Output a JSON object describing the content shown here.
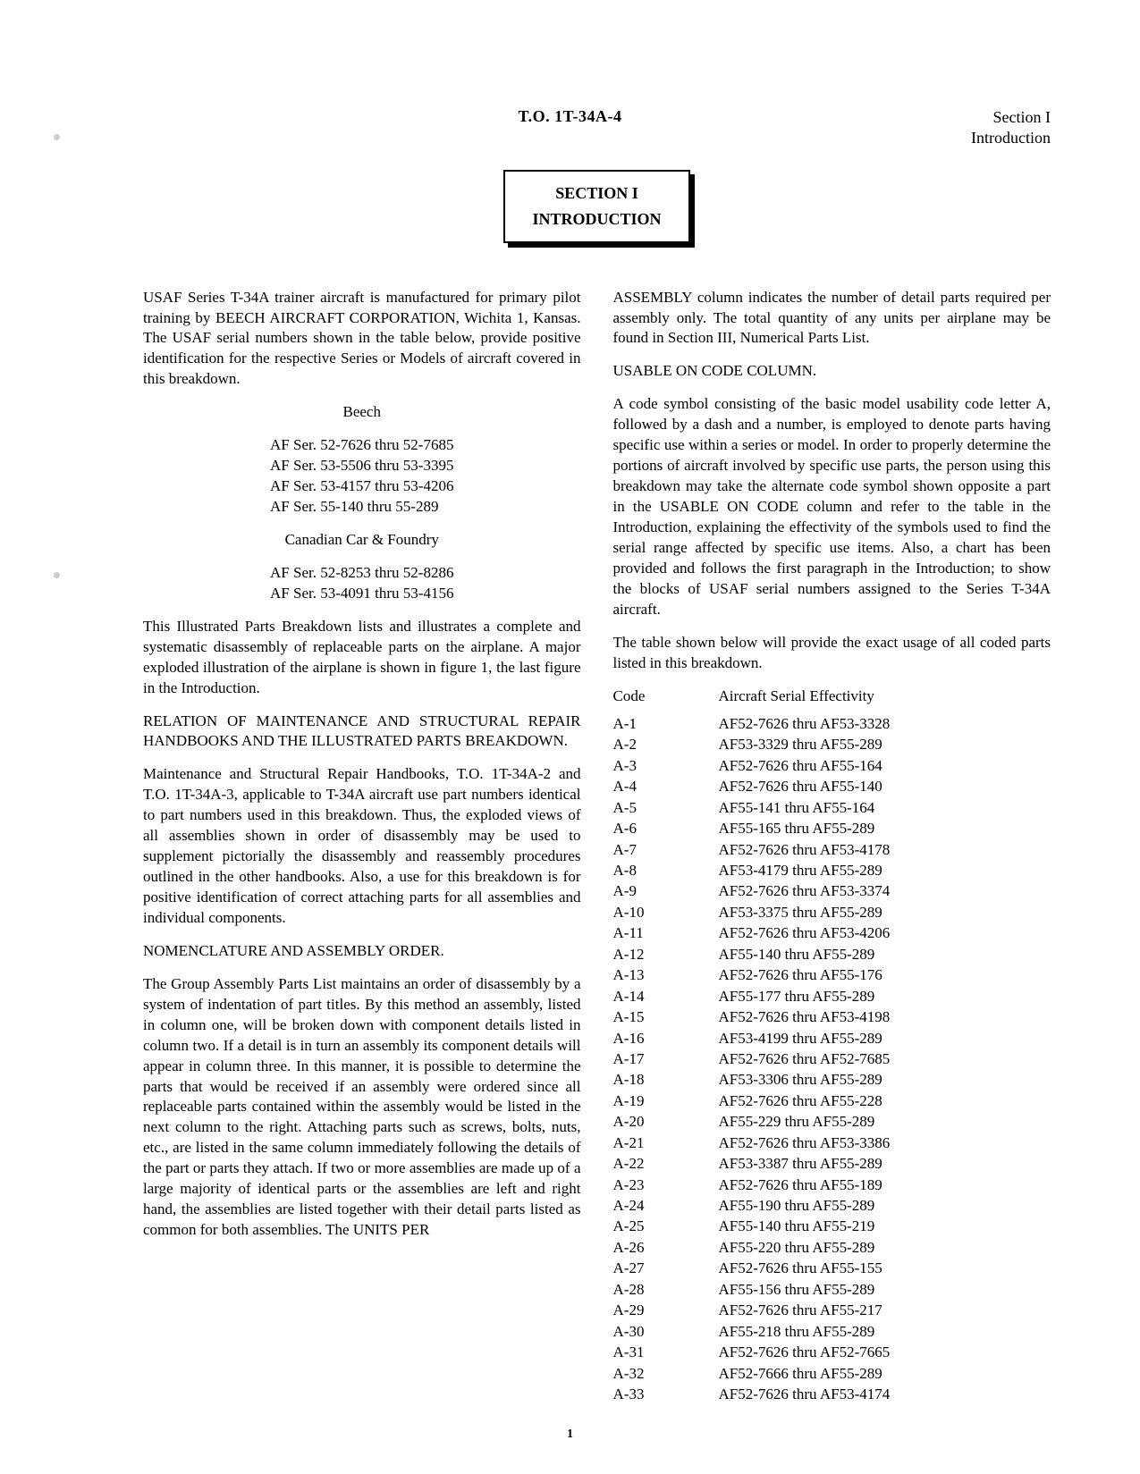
{
  "header": {
    "to_number": "T.O. 1T-34A-4",
    "section_label": "Section I",
    "section_sub": "Introduction"
  },
  "section_box": {
    "title": "SECTION I",
    "subtitle": "INTRODUCTION"
  },
  "left": {
    "p1": "USAF Series T-34A trainer aircraft is manufactured for primary pilot training by BEECH AIRCRAFT CORPORATION, Wichita 1, Kansas. The USAF serial numbers shown in the table below, provide positive identification for the respective Series or Models of aircraft covered in this breakdown.",
    "maker1": "Beech",
    "serials1": [
      "AF Ser. 52-7626 thru 52-7685",
      "AF Ser. 53-5506 thru 53-3395",
      "AF Ser. 53-4157 thru 53-4206",
      "AF Ser. 55-140 thru 55-289"
    ],
    "maker2": "Canadian Car & Foundry",
    "serials2": [
      "AF Ser. 52-8253 thru 52-8286",
      "AF Ser. 53-4091 thru 53-4156"
    ],
    "p2": "This Illustrated Parts Breakdown lists and illustrates a complete and systematic disassembly of replaceable parts on the airplane. A major exploded illustration of the airplane is shown in figure 1, the last figure in the Introduction.",
    "sub1": "RELATION OF MAINTENANCE AND STRUCTURAL REPAIR HANDBOOKS AND THE ILLUSTRATED PARTS BREAKDOWN.",
    "p3": "Maintenance and Structural Repair Handbooks, T.O. 1T-34A-2 and T.O. 1T-34A-3, applicable to T-34A aircraft use part numbers identical to part numbers used in this breakdown. Thus, the exploded views of all assemblies shown in order of disassembly may be used to supplement pictorially the disassembly and reassembly procedures outlined in the other handbooks. Also, a use for this breakdown is for positive identification of correct attaching parts for all assemblies and individual components.",
    "sub2": "NOMENCLATURE AND ASSEMBLY ORDER.",
    "p4": "The Group Assembly Parts List maintains an order of disassembly by a system of indentation of part titles. By this method an assembly, listed in column one, will be broken down with component details listed in column two. If a detail is in turn an assembly its component details will appear in column three. In this manner, it is possible to determine the parts that would be received if an assembly were ordered since all replaceable parts contained within the assembly would be listed in the next column to the right. Attaching parts such as screws, bolts, nuts, etc., are listed in the same column immediately following the details of the part or parts they attach. If two or more assemblies are made up of a large majority of identical parts or the assemblies are left and right hand, the assemblies are listed together with their detail parts listed as common for both assemblies. The UNITS PER"
  },
  "right": {
    "p1": "ASSEMBLY column indicates the number of detail parts required per assembly only. The total quantity of any units per airplane may be found in Section III, Numerical Parts List.",
    "sub1": "USABLE ON CODE COLUMN.",
    "p2": "A code symbol consisting of the basic model usability code letter A, followed by a dash and a number, is employed to denote parts having specific use within a series or model. In order to properly determine the portions of aircraft involved by specific use parts, the person using this breakdown may take the alternate code symbol shown opposite a part in the USABLE ON CODE column and refer to the table in the Introduction, explaining the effectivity of the symbols used to find the serial range affected by specific use items. Also, a chart has been provided and follows the first paragraph in the Introduction; to show the blocks of USAF serial numbers assigned to the Series T-34A aircraft.",
    "p3": "The table shown below will provide the exact usage of all coded parts listed in this breakdown.",
    "table": {
      "head_code": "Code",
      "head_eff": "Aircraft Serial Effectivity",
      "rows": [
        {
          "code": "A-1",
          "eff": "AF52-7626 thru AF53-3328"
        },
        {
          "code": "A-2",
          "eff": "AF53-3329 thru AF55-289"
        },
        {
          "code": "A-3",
          "eff": "AF52-7626 thru AF55-164"
        },
        {
          "code": "A-4",
          "eff": "AF52-7626 thru AF55-140"
        },
        {
          "code": "A-5",
          "eff": "AF55-141 thru AF55-164"
        },
        {
          "code": "A-6",
          "eff": "AF55-165 thru AF55-289"
        },
        {
          "code": "A-7",
          "eff": "AF52-7626 thru AF53-4178"
        },
        {
          "code": "A-8",
          "eff": "AF53-4179 thru AF55-289"
        },
        {
          "code": "A-9",
          "eff": "AF52-7626 thru AF53-3374"
        },
        {
          "code": "A-10",
          "eff": "AF53-3375 thru AF55-289"
        },
        {
          "code": "A-11",
          "eff": "AF52-7626 thru AF53-4206"
        },
        {
          "code": "A-12",
          "eff": "AF55-140 thru AF55-289"
        },
        {
          "code": "A-13",
          "eff": "AF52-7626 thru AF55-176"
        },
        {
          "code": "A-14",
          "eff": "AF55-177 thru AF55-289"
        },
        {
          "code": "A-15",
          "eff": "AF52-7626 thru AF53-4198"
        },
        {
          "code": "A-16",
          "eff": "AF53-4199 thru AF55-289"
        },
        {
          "code": "A-17",
          "eff": "AF52-7626 thru AF52-7685"
        },
        {
          "code": "A-18",
          "eff": "AF53-3306 thru AF55-289"
        },
        {
          "code": "A-19",
          "eff": "AF52-7626 thru AF55-228"
        },
        {
          "code": "A-20",
          "eff": "AF55-229 thru AF55-289"
        },
        {
          "code": "A-21",
          "eff": "AF52-7626 thru AF53-3386"
        },
        {
          "code": "A-22",
          "eff": "AF53-3387 thru AF55-289"
        },
        {
          "code": "A-23",
          "eff": "AF52-7626 thru AF55-189"
        },
        {
          "code": "A-24",
          "eff": "AF55-190 thru AF55-289"
        },
        {
          "code": "A-25",
          "eff": "AF55-140 thru AF55-219"
        },
        {
          "code": "A-26",
          "eff": "AF55-220 thru AF55-289"
        },
        {
          "code": "A-27",
          "eff": "AF52-7626 thru AF55-155"
        },
        {
          "code": "A-28",
          "eff": "AF55-156 thru AF55-289"
        },
        {
          "code": "A-29",
          "eff": "AF52-7626 thru AF55-217"
        },
        {
          "code": "A-30",
          "eff": "AF55-218 thru AF55-289"
        },
        {
          "code": "A-31",
          "eff": "AF52-7626 thru AF52-7665"
        },
        {
          "code": "A-32",
          "eff": "AF52-7666 thru AF55-289"
        },
        {
          "code": "A-33",
          "eff": "AF52-7626 thru AF53-4174"
        }
      ]
    }
  },
  "page_number": "1"
}
